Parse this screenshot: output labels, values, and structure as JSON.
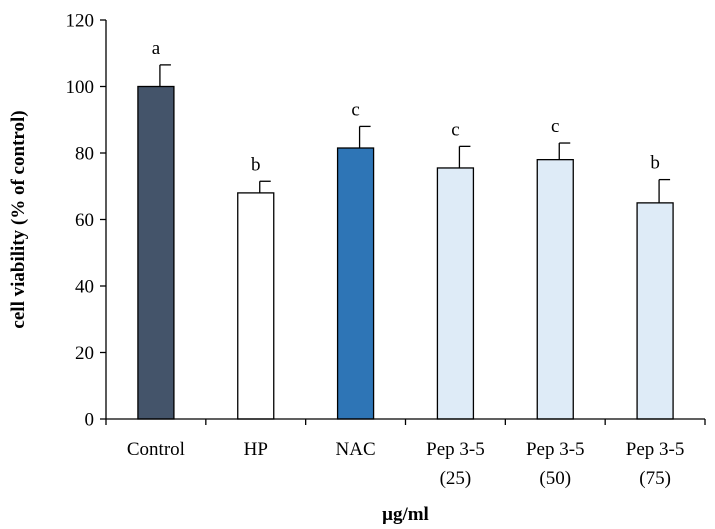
{
  "chart_data": {
    "type": "bar",
    "categories": [
      {
        "line1": "Control",
        "line2": ""
      },
      {
        "line1": "HP",
        "line2": ""
      },
      {
        "line1": "NAC",
        "line2": ""
      },
      {
        "line1": "Pep 3-5",
        "line2": "(25)"
      },
      {
        "line1": "Pep 3-5",
        "line2": "(50)"
      },
      {
        "line1": "Pep 3-5",
        "line2": "(75)"
      }
    ],
    "values": [
      100,
      68,
      81.5,
      75.5,
      78,
      65
    ],
    "errors": [
      6.5,
      3.5,
      6.5,
      6.5,
      5,
      7
    ],
    "significance": [
      "a",
      "b",
      "c",
      "c",
      "c",
      "b"
    ],
    "bar_colors": [
      "#44546a",
      "#ffffff",
      "#2e75b6",
      "#deebf7",
      "#deebf7",
      "#deebf7"
    ],
    "xlabel": "μg/ml",
    "ylabel": "cell viability  (% of control)",
    "ylim": [
      0,
      120
    ],
    "yticks": [
      0,
      20,
      40,
      60,
      80,
      100,
      120
    ],
    "grid": false,
    "legend": "none"
  }
}
